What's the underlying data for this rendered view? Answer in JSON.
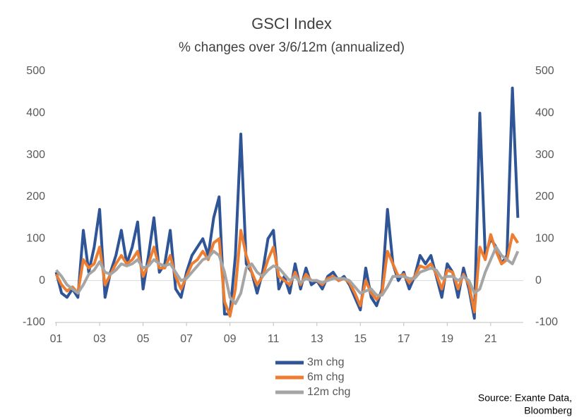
{
  "chart_data": {
    "type": "line",
    "title": "GSCI Index",
    "subtitle": "% changes over 3/6/12m (annualized)",
    "x": [
      2001.0,
      2001.25,
      2001.5,
      2001.75,
      2002.0,
      2002.25,
      2002.5,
      2002.75,
      2003.0,
      2003.25,
      2003.5,
      2003.75,
      2004.0,
      2004.25,
      2004.5,
      2004.75,
      2005.0,
      2005.25,
      2005.5,
      2005.75,
      2006.0,
      2006.25,
      2006.5,
      2006.75,
      2007.0,
      2007.25,
      2007.5,
      2007.75,
      2008.0,
      2008.25,
      2008.5,
      2008.75,
      2009.0,
      2009.25,
      2009.5,
      2009.75,
      2010.0,
      2010.25,
      2010.5,
      2010.75,
      2011.0,
      2011.25,
      2011.5,
      2011.75,
      2012.0,
      2012.25,
      2012.5,
      2012.75,
      2013.0,
      2013.25,
      2013.5,
      2013.75,
      2014.0,
      2014.25,
      2014.5,
      2014.75,
      2015.0,
      2015.25,
      2015.5,
      2015.75,
      2016.0,
      2016.25,
      2016.5,
      2016.75,
      2017.0,
      2017.25,
      2017.5,
      2017.75,
      2018.0,
      2018.25,
      2018.5,
      2018.75,
      2019.0,
      2019.25,
      2019.5,
      2019.75,
      2020.0,
      2020.25,
      2020.5,
      2020.75,
      2021.0,
      2021.25,
      2021.5,
      2021.75,
      2022.0,
      2022.25
    ],
    "series": [
      {
        "name": "3m chg",
        "color": "#2f5597",
        "values": [
          20,
          -30,
          -40,
          -20,
          -40,
          120,
          20,
          80,
          170,
          -40,
          20,
          60,
          120,
          40,
          80,
          140,
          -20,
          60,
          150,
          20,
          40,
          120,
          -20,
          -40,
          20,
          60,
          80,
          100,
          60,
          150,
          200,
          -80,
          -80,
          60,
          350,
          40,
          20,
          -30,
          20,
          100,
          120,
          -20,
          10,
          -30,
          40,
          -20,
          30,
          -10,
          0,
          -20,
          10,
          20,
          0,
          10,
          -10,
          -40,
          -70,
          30,
          -40,
          -60,
          -20,
          170,
          40,
          0,
          20,
          -20,
          10,
          60,
          40,
          60,
          10,
          -40,
          40,
          20,
          -40,
          30,
          -20,
          -90,
          400,
          60,
          100,
          80,
          40,
          60,
          460,
          150
        ]
      },
      {
        "name": "6m chg",
        "color": "#ed7d31",
        "values": [
          15,
          -10,
          -25,
          -15,
          -30,
          50,
          30,
          40,
          80,
          -10,
          15,
          40,
          60,
          40,
          50,
          70,
          10,
          40,
          80,
          30,
          30,
          60,
          10,
          -20,
          10,
          40,
          50,
          70,
          50,
          90,
          100,
          -50,
          -85,
          -20,
          120,
          60,
          20,
          -10,
          10,
          50,
          80,
          10,
          0,
          -10,
          20,
          -10,
          15,
          0,
          0,
          -10,
          5,
          10,
          0,
          5,
          -5,
          -30,
          -60,
          0,
          -30,
          -45,
          -30,
          70,
          40,
          10,
          15,
          -5,
          10,
          35,
          30,
          40,
          15,
          -20,
          25,
          20,
          -20,
          15,
          -10,
          -75,
          80,
          50,
          110,
          70,
          40,
          50,
          110,
          90
        ]
      },
      {
        "name": "12m chg",
        "color": "#a5a5a5",
        "values": [
          25,
          10,
          -10,
          -20,
          -30,
          -10,
          15,
          25,
          45,
          20,
          15,
          25,
          40,
          35,
          40,
          50,
          30,
          35,
          50,
          40,
          35,
          40,
          20,
          0,
          5,
          20,
          35,
          50,
          55,
          70,
          60,
          20,
          -40,
          -55,
          -30,
          30,
          40,
          20,
          10,
          25,
          35,
          30,
          15,
          0,
          10,
          -5,
          5,
          0,
          0,
          -5,
          0,
          5,
          5,
          5,
          0,
          -15,
          -30,
          -25,
          -20,
          -35,
          -35,
          -15,
          10,
          10,
          10,
          5,
          5,
          20,
          25,
          30,
          25,
          5,
          10,
          10,
          0,
          10,
          0,
          -30,
          -20,
          20,
          50,
          80,
          60,
          50,
          40,
          70
        ]
      }
    ],
    "xlim": [
      2000.95,
      2022.5
    ],
    "xticks": [
      {
        "value": 2001,
        "label": "01"
      },
      {
        "value": 2003,
        "label": "03"
      },
      {
        "value": 2005,
        "label": "05"
      },
      {
        "value": 2007,
        "label": "07"
      },
      {
        "value": 2009,
        "label": "09"
      },
      {
        "value": 2011,
        "label": "11"
      },
      {
        "value": 2013,
        "label": "13"
      },
      {
        "value": 2015,
        "label": "15"
      },
      {
        "value": 2017,
        "label": "17"
      },
      {
        "value": 2019,
        "label": "19"
      },
      {
        "value": 2021,
        "label": "21"
      }
    ],
    "ylim": [
      -100,
      500
    ],
    "yticks": [
      -100,
      0,
      100,
      200,
      300,
      400,
      500
    ],
    "y2lim": [
      -100,
      500
    ],
    "y2ticks": [
      -100,
      0,
      100,
      200,
      300,
      400,
      500
    ],
    "source": [
      "Source: Exante Data,",
      "Bloomberg"
    ]
  }
}
